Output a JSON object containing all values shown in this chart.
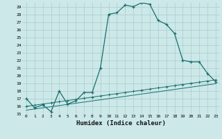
{
  "xlabel": "Humidex (Indice chaleur)",
  "bg_color": "#cce8e8",
  "grid_color": "#aacccc",
  "line_color": "#1a6e6e",
  "xlim": [
    -0.5,
    23.5
  ],
  "ylim": [
    15,
    29.5
  ],
  "xticks": [
    0,
    1,
    2,
    3,
    4,
    5,
    6,
    7,
    8,
    9,
    10,
    11,
    12,
    13,
    14,
    15,
    16,
    17,
    18,
    19,
    20,
    21,
    22,
    23
  ],
  "yticks": [
    15,
    16,
    17,
    18,
    19,
    20,
    21,
    22,
    23,
    24,
    25,
    26,
    27,
    28,
    29
  ],
  "series1_x": [
    0,
    1,
    2,
    3,
    4,
    5,
    6,
    7,
    8,
    9,
    10,
    11,
    12,
    13,
    14,
    15,
    16,
    17,
    18,
    19,
    20,
    21,
    22,
    23
  ],
  "series1_y": [
    17.0,
    15.8,
    16.2,
    15.3,
    18.0,
    16.3,
    16.7,
    17.8,
    17.8,
    21.0,
    28.0,
    28.2,
    29.2,
    29.0,
    29.5,
    29.3,
    27.2,
    26.7,
    25.5,
    22.0,
    21.8,
    21.8,
    20.3,
    19.2
  ],
  "series2_x": [
    0,
    1,
    2,
    3,
    4,
    5,
    6,
    7,
    8,
    9,
    10,
    11,
    12,
    13,
    14,
    15,
    16,
    17,
    18,
    19,
    20,
    21,
    22,
    23
  ],
  "series2_y": [
    16.0,
    16.15,
    16.3,
    16.45,
    16.6,
    16.75,
    16.9,
    17.05,
    17.2,
    17.35,
    17.5,
    17.65,
    17.8,
    17.95,
    18.1,
    18.25,
    18.4,
    18.55,
    18.7,
    18.85,
    19.0,
    19.15,
    19.3,
    19.45
  ],
  "series3_x": [
    0,
    1,
    2,
    3,
    4,
    5,
    6,
    7,
    8,
    9,
    10,
    11,
    12,
    13,
    14,
    15,
    16,
    17,
    18,
    19,
    20,
    21,
    22,
    23
  ],
  "series3_y": [
    15.5,
    15.65,
    15.8,
    15.95,
    16.1,
    16.25,
    16.4,
    16.55,
    16.7,
    16.85,
    17.0,
    17.15,
    17.3,
    17.45,
    17.6,
    17.75,
    17.9,
    18.05,
    18.2,
    18.35,
    18.5,
    18.65,
    18.8,
    18.95
  ]
}
